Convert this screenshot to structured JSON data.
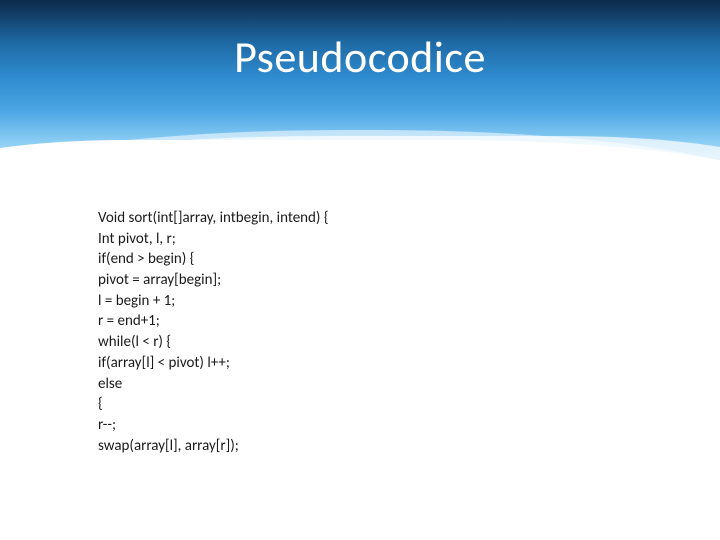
{
  "slide": {
    "title": "Pseudocodice",
    "title_fontsize": 44,
    "title_color": "#ffffff",
    "band_gradient_top": "#0a2a4a",
    "band_gradient_bottom": "#caeaff",
    "code_fontsize": 15,
    "code_color": "#1a1a1a",
    "code_lines": [
      "Void sort(int[]array, intbegin, intend) {",
      "Int pivot, l, r;",
      "if(end > begin) {",
      "pivot = array[begin];",
      "l = begin + 1;",
      "r = end+1;",
      "while(l < r) {",
      "if(array[l] < pivot) l++;",
      "else",
      "{",
      "r--;",
      "swap(array[l], array[r]);"
    ],
    "code_text": "Void sort(int[]array, intbegin, intend) {\nInt pivot, l, r;\nif(end > begin) {\npivot = array[begin];\nl = begin + 1;\nr = end+1;\nwhile(l < r) {\nif(array[l] < pivot) l++;\nelse\n{\nr--;\nswap(array[l], array[r]);"
  }
}
